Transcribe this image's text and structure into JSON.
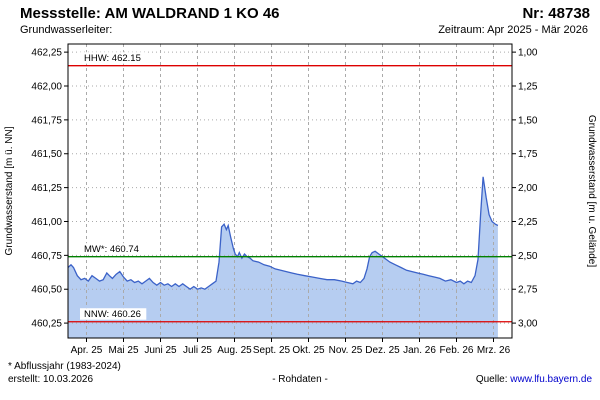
{
  "header": {
    "station_label": "Messstelle: AM WALDRAND 1 KO 46",
    "number_label": "Nr: 48738",
    "aquifer_label": "Grundwasserleiter:",
    "period_label": "Zeitraum: Apr 2025 - Mär 2026"
  },
  "colors": {
    "line": "#3b62c8",
    "area_fill": "#b6cdf1",
    "grid": "#aaaaaa",
    "hhw_red": "#dd0000",
    "mw_green": "#008000",
    "nnw_red": "#dd0000",
    "link_blue": "#0000cc"
  },
  "footer": {
    "note": "* Abflussjahr (1983-2024)",
    "created": "erstellt:  10.03.2026",
    "center": "- Rohdaten -",
    "source_label": "Quelle: ",
    "source_link": "www.lfu.bayern.de"
  },
  "chart_data": {
    "type": "area",
    "title": "",
    "x_unit": "months since Apr 2025",
    "xlim": [
      0,
      12
    ],
    "ylim": [
      460.14,
      462.31
    ],
    "ylabel_left": "Grundwasserstand [m ü. NN]",
    "ylabel_right": "Grundwasserstand [m u. Gelände]",
    "x_ticks": [
      "Apr. 25",
      "Mai 25",
      "Juni 25",
      "Juli 25",
      "Aug. 25",
      "Sept. 25",
      "Okt. 25",
      "Nov. 25",
      "Dez. 25",
      "Jan. 26",
      "Feb. 26",
      "Mrz. 26"
    ],
    "y_ticks": [
      {
        "left": "462,25",
        "right": "1,00",
        "value": 462.25
      },
      {
        "left": "462,00",
        "right": "1,25",
        "value": 462.0
      },
      {
        "left": "461,75",
        "right": "1,50",
        "value": 461.75
      },
      {
        "left": "461,50",
        "right": "1,75",
        "value": 461.5
      },
      {
        "left": "461,25",
        "right": "2,00",
        "value": 461.25
      },
      {
        "left": "461,00",
        "right": "2,25",
        "value": 461.0
      },
      {
        "left": "460,75",
        "right": "2,50",
        "value": 460.75
      },
      {
        "left": "460,50",
        "right": "2,75",
        "value": 460.5
      },
      {
        "left": "460,25",
        "right": "3,00",
        "value": 460.25
      }
    ],
    "ref_lines": [
      {
        "name": "HHW",
        "label": "HHW: 462.15",
        "value": 462.15,
        "color": "#dd0000"
      },
      {
        "name": "MW",
        "label": "MW*: 460.74",
        "value": 460.74,
        "color": "#008000"
      },
      {
        "name": "NNW",
        "label": "NNW: 460.26",
        "value": 460.26,
        "color": "#dd0000"
      }
    ],
    "points": [
      [
        0.0,
        460.66
      ],
      [
        0.08,
        460.68
      ],
      [
        0.15,
        460.66
      ],
      [
        0.25,
        460.6
      ],
      [
        0.35,
        460.57
      ],
      [
        0.45,
        460.58
      ],
      [
        0.55,
        460.56
      ],
      [
        0.65,
        460.6
      ],
      [
        0.75,
        460.58
      ],
      [
        0.85,
        460.56
      ],
      [
        0.95,
        460.57
      ],
      [
        1.05,
        460.62
      ],
      [
        1.12,
        460.6
      ],
      [
        1.2,
        460.58
      ],
      [
        1.3,
        460.61
      ],
      [
        1.4,
        460.63
      ],
      [
        1.5,
        460.59
      ],
      [
        1.6,
        460.56
      ],
      [
        1.7,
        460.57
      ],
      [
        1.8,
        460.55
      ],
      [
        1.9,
        460.56
      ],
      [
        2.0,
        460.54
      ],
      [
        2.1,
        460.56
      ],
      [
        2.2,
        460.58
      ],
      [
        2.3,
        460.55
      ],
      [
        2.4,
        460.53
      ],
      [
        2.5,
        460.55
      ],
      [
        2.6,
        460.53
      ],
      [
        2.7,
        460.54
      ],
      [
        2.8,
        460.52
      ],
      [
        2.9,
        460.54
      ],
      [
        3.0,
        460.52
      ],
      [
        3.1,
        460.54
      ],
      [
        3.2,
        460.52
      ],
      [
        3.3,
        460.5
      ],
      [
        3.4,
        460.52
      ],
      [
        3.5,
        460.5
      ],
      [
        3.6,
        460.51
      ],
      [
        3.7,
        460.5
      ],
      [
        3.8,
        460.52
      ],
      [
        3.9,
        460.54
      ],
      [
        4.0,
        460.56
      ],
      [
        4.08,
        460.7
      ],
      [
        4.15,
        460.96
      ],
      [
        4.22,
        460.98
      ],
      [
        4.28,
        460.94
      ],
      [
        4.33,
        460.97
      ],
      [
        4.4,
        460.88
      ],
      [
        4.47,
        460.8
      ],
      [
        4.52,
        460.76
      ],
      [
        4.58,
        460.74
      ],
      [
        4.63,
        460.77
      ],
      [
        4.7,
        460.73
      ],
      [
        4.77,
        460.76
      ],
      [
        4.84,
        460.74
      ],
      [
        4.92,
        460.73
      ],
      [
        5.0,
        460.71
      ],
      [
        5.15,
        460.7
      ],
      [
        5.3,
        460.68
      ],
      [
        5.45,
        460.67
      ],
      [
        5.6,
        460.65
      ],
      [
        5.75,
        460.64
      ],
      [
        5.9,
        460.63
      ],
      [
        6.05,
        460.62
      ],
      [
        6.2,
        460.61
      ],
      [
        6.4,
        460.6
      ],
      [
        6.6,
        460.59
      ],
      [
        6.8,
        460.58
      ],
      [
        7.0,
        460.57
      ],
      [
        7.2,
        460.57
      ],
      [
        7.4,
        460.56
      ],
      [
        7.55,
        460.55
      ],
      [
        7.7,
        460.54
      ],
      [
        7.8,
        460.56
      ],
      [
        7.9,
        460.55
      ],
      [
        8.0,
        460.58
      ],
      [
        8.08,
        460.65
      ],
      [
        8.15,
        460.74
      ],
      [
        8.22,
        460.77
      ],
      [
        8.3,
        460.78
      ],
      [
        8.4,
        460.76
      ],
      [
        8.5,
        460.74
      ],
      [
        8.6,
        460.72
      ],
      [
        8.7,
        460.7
      ],
      [
        8.85,
        460.68
      ],
      [
        9.0,
        460.66
      ],
      [
        9.15,
        460.64
      ],
      [
        9.3,
        460.63
      ],
      [
        9.45,
        460.62
      ],
      [
        9.6,
        460.61
      ],
      [
        9.75,
        460.6
      ],
      [
        9.9,
        460.59
      ],
      [
        10.05,
        460.58
      ],
      [
        10.2,
        460.56
      ],
      [
        10.35,
        460.57
      ],
      [
        10.5,
        460.55
      ],
      [
        10.6,
        460.56
      ],
      [
        10.7,
        460.54
      ],
      [
        10.8,
        460.56
      ],
      [
        10.9,
        460.55
      ],
      [
        11.0,
        460.6
      ],
      [
        11.08,
        460.72
      ],
      [
        11.15,
        461.05
      ],
      [
        11.22,
        461.33
      ],
      [
        11.3,
        461.18
      ],
      [
        11.38,
        461.05
      ],
      [
        11.46,
        461.0
      ],
      [
        11.55,
        460.98
      ],
      [
        11.62,
        460.97
      ]
    ]
  }
}
